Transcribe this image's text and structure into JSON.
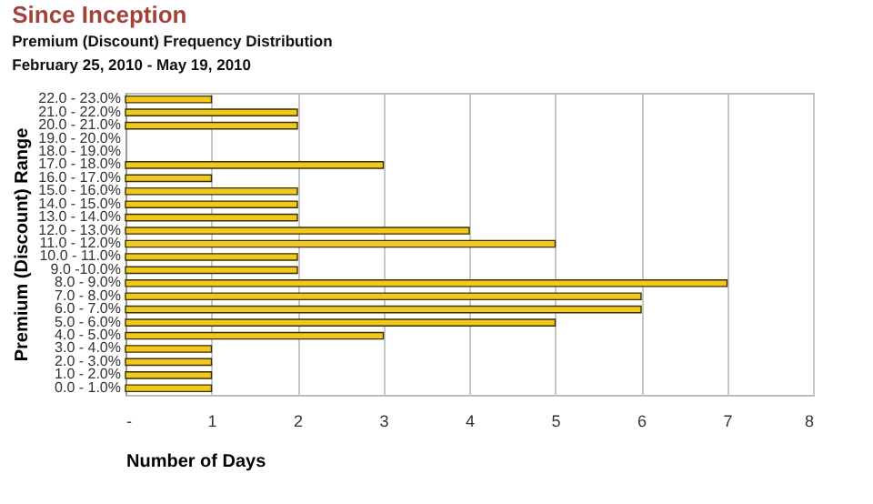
{
  "chart_data": {
    "type": "bar",
    "orientation": "horizontal",
    "title": "Since Inception",
    "subtitle": "Premium (Discount) Frequency Distribution",
    "annotations": [
      "February 25, 2010 - May 19, 2010"
    ],
    "xlabel": "Number of Days",
    "ylabel": "Premium (Discount) Range",
    "categories": [
      "22.0 - 23.0%",
      "21.0 - 22.0%",
      "20.0 - 21.0%",
      "19.0 - 20.0%",
      "18.0 - 19.0%",
      "17.0 - 18.0%",
      "16.0 - 17.0%",
      "15.0 - 16.0%",
      "14.0 - 15.0%",
      "13.0 - 14.0%",
      "12.0 - 13.0%",
      "11.0 - 12.0%",
      "10.0 - 11.0%",
      "9.0 -10.0%",
      "8.0 - 9.0%",
      "7.0 - 8.0%",
      "6.0 - 7.0%",
      "5.0 - 6.0%",
      "4.0 - 5.0%",
      "3.0 - 4.0%",
      "2.0 - 3.0%",
      "1.0 - 2.0%",
      "0.0 - 1.0%"
    ],
    "values": [
      1,
      2,
      2,
      0,
      0,
      3,
      1,
      2,
      2,
      2,
      4,
      5,
      2,
      2,
      7,
      6,
      6,
      5,
      3,
      1,
      1,
      1,
      1
    ],
    "color": "#f2c81e",
    "xlim": [
      0,
      8
    ],
    "xticks": [
      {
        "value": 0,
        "label": "-"
      },
      1,
      2,
      3,
      4,
      5,
      6,
      7,
      8
    ],
    "grid": "x"
  }
}
